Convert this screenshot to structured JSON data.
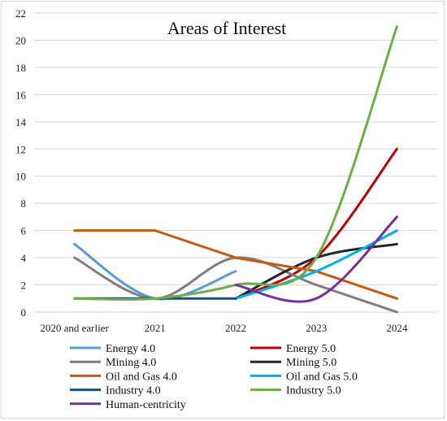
{
  "chart_data": {
    "type": "line",
    "title": "Areas of Interest",
    "categories": [
      "2020 and earlier",
      "2021",
      "2022",
      "2023",
      "2024"
    ],
    "ylim": [
      0,
      22
    ],
    "yticks": [
      0,
      2,
      4,
      6,
      8,
      10,
      12,
      14,
      16,
      18,
      20,
      22
    ],
    "grid": "horizontal",
    "legend_position": "bottom",
    "series": [
      {
        "name": "Energy  4.0",
        "color": "#5b9bd5",
        "smooth": true,
        "values": [
          5,
          1,
          3,
          null,
          null
        ]
      },
      {
        "name": "Energy  5.0",
        "color": "#c00000",
        "smooth": true,
        "values": [
          null,
          null,
          1,
          4,
          12
        ]
      },
      {
        "name": "Mining  4.0",
        "color": "#7f7f7f",
        "smooth": true,
        "values": [
          4,
          1,
          4,
          2,
          0
        ]
      },
      {
        "name": "Mining  5.0",
        "color": "#262626",
        "smooth": true,
        "values": [
          null,
          null,
          1,
          4,
          5
        ]
      },
      {
        "name": "Oil and Gas 4.0",
        "color": "#c55a11",
        "smooth": false,
        "values": [
          6,
          6,
          4,
          3,
          1
        ]
      },
      {
        "name": "Oil and Gas 5.0",
        "color": "#00b0f0",
        "smooth": true,
        "values": [
          null,
          null,
          1,
          3,
          6
        ]
      },
      {
        "name": "Industry  4.0",
        "color": "#1f4e79",
        "smooth": false,
        "values": [
          1,
          1,
          1,
          null,
          null
        ]
      },
      {
        "name": "Industry  5.0",
        "color": "#70ad47",
        "smooth": true,
        "values": [
          1,
          1,
          2,
          4,
          21
        ]
      },
      {
        "name": "Human-centricity",
        "color": "#7030a0",
        "smooth": true,
        "values": [
          null,
          null,
          2,
          1,
          7
        ]
      }
    ]
  }
}
